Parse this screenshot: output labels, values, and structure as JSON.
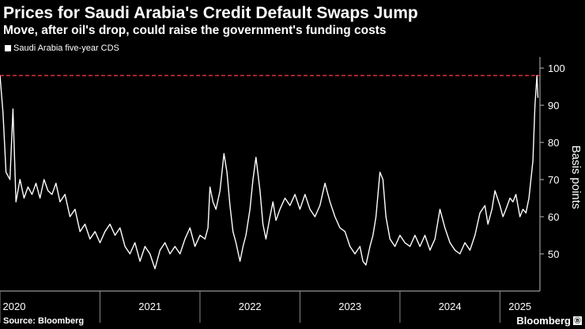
{
  "header": {
    "title": "Prices for Saudi Arabia's Credit Default Swaps Jump",
    "subtitle": "Move, after oil's drop, could raise the government's funding costs"
  },
  "footer": {
    "source": "Source: Bloomberg",
    "brand": "Bloomberg"
  },
  "chart_data": {
    "type": "line",
    "title": "Prices for Saudi Arabia's Credit Default Swaps Jump",
    "subtitle": "Move, after oil's drop, could raise the government's funding costs",
    "ylabel": "Basis points",
    "xlabel": "",
    "ylim": [
      40,
      103
    ],
    "yticks": [
      50,
      60,
      70,
      80,
      90,
      100
    ],
    "xlim": [
      2020.0,
      2025.4
    ],
    "xticks": [
      {
        "value": 2020.0,
        "label": "2020"
      },
      {
        "value": 2021.0,
        "label": "2021"
      },
      {
        "value": 2022.0,
        "label": "2022"
      },
      {
        "value": 2023.0,
        "label": "2023"
      },
      {
        "value": 2024.0,
        "label": "2024"
      },
      {
        "value": 2025.0,
        "label": "2025"
      }
    ],
    "grid": false,
    "legend_position": "top-left",
    "reference_line": {
      "value": 98,
      "style": "dashed",
      "color": "#e0303c"
    },
    "series": [
      {
        "name": "Saudi Arabia five-year CDS",
        "color": "#ffffff",
        "points": [
          [
            2020.0,
            98
          ],
          [
            2020.03,
            88
          ],
          [
            2020.06,
            72
          ],
          [
            2020.1,
            70
          ],
          [
            2020.13,
            89
          ],
          [
            2020.16,
            64
          ],
          [
            2020.2,
            70
          ],
          [
            2020.24,
            65
          ],
          [
            2020.28,
            68
          ],
          [
            2020.32,
            66
          ],
          [
            2020.36,
            69
          ],
          [
            2020.4,
            65
          ],
          [
            2020.44,
            70
          ],
          [
            2020.48,
            67
          ],
          [
            2020.52,
            66
          ],
          [
            2020.56,
            69
          ],
          [
            2020.6,
            64
          ],
          [
            2020.65,
            66
          ],
          [
            2020.7,
            60
          ],
          [
            2020.75,
            62
          ],
          [
            2020.8,
            56
          ],
          [
            2020.85,
            58
          ],
          [
            2020.9,
            54
          ],
          [
            2020.95,
            56
          ],
          [
            2021.0,
            53
          ],
          [
            2021.05,
            56
          ],
          [
            2021.1,
            58
          ],
          [
            2021.15,
            55
          ],
          [
            2021.2,
            57
          ],
          [
            2021.25,
            52
          ],
          [
            2021.3,
            50
          ],
          [
            2021.35,
            53
          ],
          [
            2021.4,
            48
          ],
          [
            2021.45,
            52
          ],
          [
            2021.5,
            50
          ],
          [
            2021.55,
            46
          ],
          [
            2021.6,
            51
          ],
          [
            2021.65,
            53
          ],
          [
            2021.7,
            50
          ],
          [
            2021.75,
            52
          ],
          [
            2021.8,
            50
          ],
          [
            2021.85,
            54
          ],
          [
            2021.9,
            57
          ],
          [
            2021.95,
            52
          ],
          [
            2022.0,
            55
          ],
          [
            2022.05,
            54
          ],
          [
            2022.08,
            57
          ],
          [
            2022.1,
            68
          ],
          [
            2022.13,
            64
          ],
          [
            2022.16,
            62
          ],
          [
            2022.2,
            67
          ],
          [
            2022.24,
            77
          ],
          [
            2022.27,
            72
          ],
          [
            2022.3,
            63
          ],
          [
            2022.33,
            56
          ],
          [
            2022.36,
            53
          ],
          [
            2022.4,
            48
          ],
          [
            2022.43,
            52
          ],
          [
            2022.46,
            55
          ],
          [
            2022.5,
            62
          ],
          [
            2022.53,
            70
          ],
          [
            2022.56,
            76
          ],
          [
            2022.6,
            67
          ],
          [
            2022.63,
            58
          ],
          [
            2022.66,
            54
          ],
          [
            2022.7,
            60
          ],
          [
            2022.73,
            64
          ],
          [
            2022.76,
            59
          ],
          [
            2022.8,
            62
          ],
          [
            2022.85,
            65
          ],
          [
            2022.9,
            63
          ],
          [
            2022.95,
            66
          ],
          [
            2023.0,
            62
          ],
          [
            2023.05,
            66
          ],
          [
            2023.1,
            62
          ],
          [
            2023.15,
            60
          ],
          [
            2023.2,
            63
          ],
          [
            2023.25,
            69
          ],
          [
            2023.3,
            64
          ],
          [
            2023.35,
            60
          ],
          [
            2023.4,
            57
          ],
          [
            2023.45,
            56
          ],
          [
            2023.5,
            52
          ],
          [
            2023.55,
            50
          ],
          [
            2023.6,
            52
          ],
          [
            2023.63,
            48
          ],
          [
            2023.66,
            47
          ],
          [
            2023.7,
            52
          ],
          [
            2023.73,
            55
          ],
          [
            2023.76,
            60
          ],
          [
            2023.8,
            72
          ],
          [
            2023.83,
            70
          ],
          [
            2023.86,
            60
          ],
          [
            2023.9,
            54
          ],
          [
            2023.95,
            52
          ],
          [
            2024.0,
            55
          ],
          [
            2024.05,
            53
          ],
          [
            2024.1,
            52
          ],
          [
            2024.15,
            55
          ],
          [
            2024.2,
            52
          ],
          [
            2024.25,
            55
          ],
          [
            2024.3,
            51
          ],
          [
            2024.35,
            54
          ],
          [
            2024.4,
            62
          ],
          [
            2024.45,
            57
          ],
          [
            2024.5,
            53
          ],
          [
            2024.55,
            51
          ],
          [
            2024.6,
            50
          ],
          [
            2024.65,
            53
          ],
          [
            2024.7,
            51
          ],
          [
            2024.75,
            55
          ],
          [
            2024.8,
            61
          ],
          [
            2024.85,
            63
          ],
          [
            2024.88,
            58
          ],
          [
            2024.92,
            62
          ],
          [
            2024.95,
            67
          ],
          [
            2025.0,
            63
          ],
          [
            2025.03,
            60
          ],
          [
            2025.06,
            62
          ],
          [
            2025.1,
            65
          ],
          [
            2025.13,
            64
          ],
          [
            2025.16,
            66
          ],
          [
            2025.2,
            60
          ],
          [
            2025.23,
            62
          ],
          [
            2025.26,
            61
          ],
          [
            2025.29,
            65
          ],
          [
            2025.31,
            70
          ],
          [
            2025.33,
            75
          ],
          [
            2025.35,
            90
          ],
          [
            2025.37,
            98
          ],
          [
            2025.38,
            92
          ]
        ]
      }
    ]
  },
  "legend": {
    "label": "Saudi Arabia five-year CDS"
  }
}
